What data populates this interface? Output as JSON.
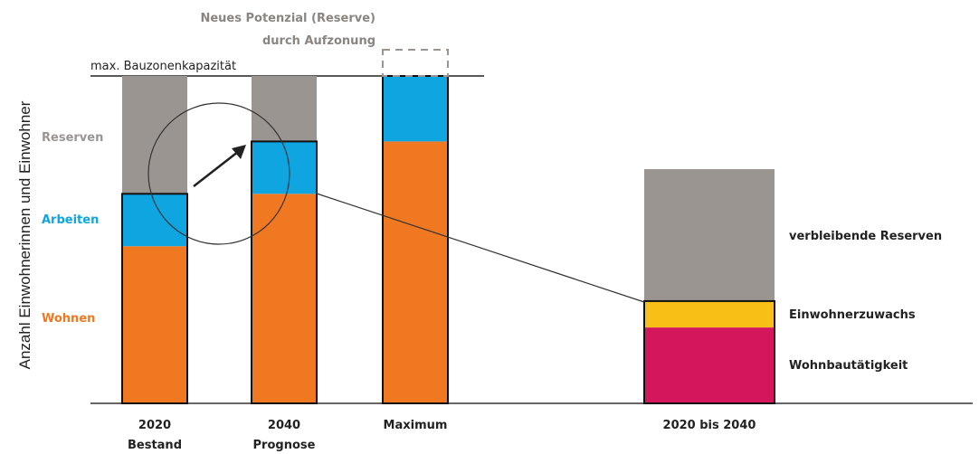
{
  "chart_data": {
    "type": "bar",
    "stacked": true,
    "ylabel": "Anzahl Einwohnerinnen und Einwohner",
    "categories": [
      {
        "line1": "2020",
        "line2": "Bestand"
      },
      {
        "line1": "2040",
        "line2": "Prognose"
      },
      {
        "line1": "Maximum",
        "line2": ""
      }
    ],
    "series": [
      {
        "name": "Wohnen",
        "color": "#f07820",
        "values": [
          48,
          64,
          80
        ]
      },
      {
        "name": "Arbeiten",
        "color": "#0ea5e0",
        "values": [
          16,
          16,
          20
        ]
      },
      {
        "name": "Reserven",
        "color": "#9a9590",
        "values": [
          36,
          20,
          0
        ]
      }
    ],
    "capacity": {
      "label": "max. Bauzonenkapazität",
      "value": 100
    },
    "new_potential": {
      "line1": "Neues Potenzial (Reserve)",
      "line2": "durch Aufzonung",
      "value": 20,
      "color": "#9a9590"
    },
    "detail": {
      "category": "2020 bis 2040",
      "segments": [
        {
          "label": "Wohnbautätigkeit",
          "value": 23,
          "color": "#d4175c"
        },
        {
          "label": "Einwohnerzuwachs",
          "value": 8,
          "color": "#f8c016"
        },
        {
          "label": "verbleibende Reserven",
          "value": 40,
          "color": "#9a9590"
        }
      ]
    },
    "ylim": [
      0,
      100
    ],
    "grid": false,
    "legend": "left"
  }
}
